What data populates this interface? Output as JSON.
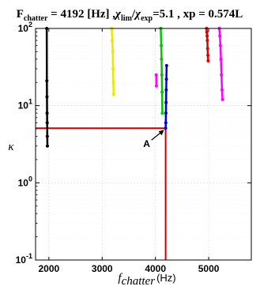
{
  "chart_data": {
    "type": "scatter",
    "title": {
      "prefix": "F",
      "prefix_sub": "chatter",
      "part1": " = 4192 [Hz] ,",
      "chi1": "χ",
      "chi1_sub": "lim",
      "slash": "/",
      "chi2": "χ",
      "chi2_sub": "exp",
      "part2": "=5.1  , xp = 0.574L"
    },
    "xlabel": {
      "symbol": "f",
      "sub": "chatter",
      "unit": "(Hz)"
    },
    "ylabel": "κ",
    "xlim": [
      1750,
      5800
    ],
    "ylim": [
      0.1,
      100
    ],
    "yscale": "log",
    "grid": true,
    "xticks": [
      2000,
      3000,
      4000,
      5000
    ],
    "xtick_labels": [
      "2000",
      "3000",
      "4000",
      "5000"
    ],
    "yticks": [
      0.1,
      1,
      10,
      100
    ],
    "ytick_labels": [
      {
        "base": "10",
        "exp": "-1"
      },
      {
        "base": "10",
        "exp": "0"
      },
      {
        "base": "10",
        "exp": "1"
      },
      {
        "base": "10",
        "exp": "2"
      }
    ],
    "series": [
      {
        "color": "#000000",
        "x": [
          1960,
          1962,
          1964,
          1966,
          1968,
          1970,
          1972
        ],
        "y": [
          100,
          21,
          13,
          8,
          6,
          4,
          3
        ]
      },
      {
        "color": "#e8e800",
        "x": [
          3180,
          3190,
          3200,
          3205,
          3210,
          3215
        ],
        "y": [
          100,
          70,
          50,
          30,
          20,
          14
        ]
      },
      {
        "color": "#00c800",
        "x": [
          4100,
          4110,
          4115,
          4120,
          4125,
          4130
        ],
        "y": [
          100,
          60,
          40,
          25,
          15,
          8
        ]
      },
      {
        "color": "#0000cc",
        "x": [
          4192,
          4195,
          4197,
          4200,
          4203,
          4206,
          4210
        ],
        "y": [
          5.1,
          6,
          8,
          11,
          16,
          22,
          33
        ]
      },
      {
        "color": "#ff00ff",
        "x": [
          4015,
          4018
        ],
        "y": [
          25,
          18
        ]
      },
      {
        "color": "#dd0000",
        "x": [
          4960,
          4965,
          4970,
          4975,
          4980,
          4985,
          4990
        ],
        "y": [
          100,
          90,
          80,
          70,
          55,
          45,
          38
        ]
      },
      {
        "color": "#ff00ff",
        "x": [
          5200,
          5210,
          5220,
          5230,
          5240,
          5250,
          5260
        ],
        "y": [
          100,
          80,
          60,
          40,
          25,
          16,
          12
        ]
      }
    ],
    "marker_lines": {
      "color": "#cc0000",
      "x": 4192,
      "y": 5.1
    },
    "annotation": {
      "text": "A",
      "x": 4192,
      "y": 5.1
    }
  }
}
